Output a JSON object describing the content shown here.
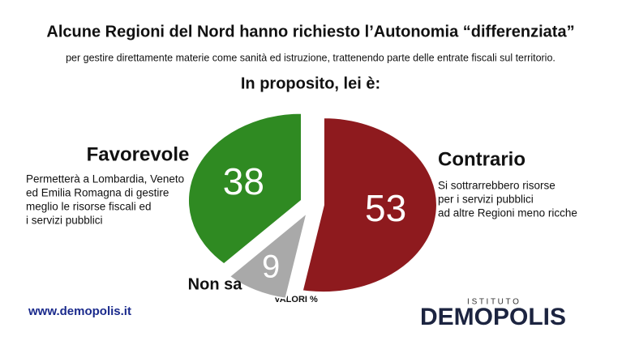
{
  "chart_data": {
    "type": "pie",
    "title": "Alcune Regioni del Nord hanno richiesto l’Autonomia “differenziata”",
    "subtitle": "per gestire direttamente materie come sanità ed istruzione, trattenendo parte delle entrate fiscali sul territorio.",
    "question": "In proposito, lei è:",
    "categories": [
      "Contrario",
      "Non sa",
      "Favorevole"
    ],
    "values": [
      53,
      9,
      38
    ],
    "colors": [
      "#8e1a1e",
      "#a9a9a9",
      "#2f8a22"
    ],
    "favorevole_text": [
      "Permetterà a Lombardia, Veneto",
      "ed Emilia Romagna di gestire",
      "meglio le risorse fiscali ed",
      "i servizi pubblici"
    ],
    "contrario_text": [
      "Si sottrarrebbero risorse",
      "per i servizi pubblici",
      "ad altre Regioni meno ricche"
    ],
    "units_note": "VALORI %",
    "source": "www.demopolis.it",
    "brand_top": "I S T I T U T O",
    "brand": "DEMOPOLIS"
  }
}
